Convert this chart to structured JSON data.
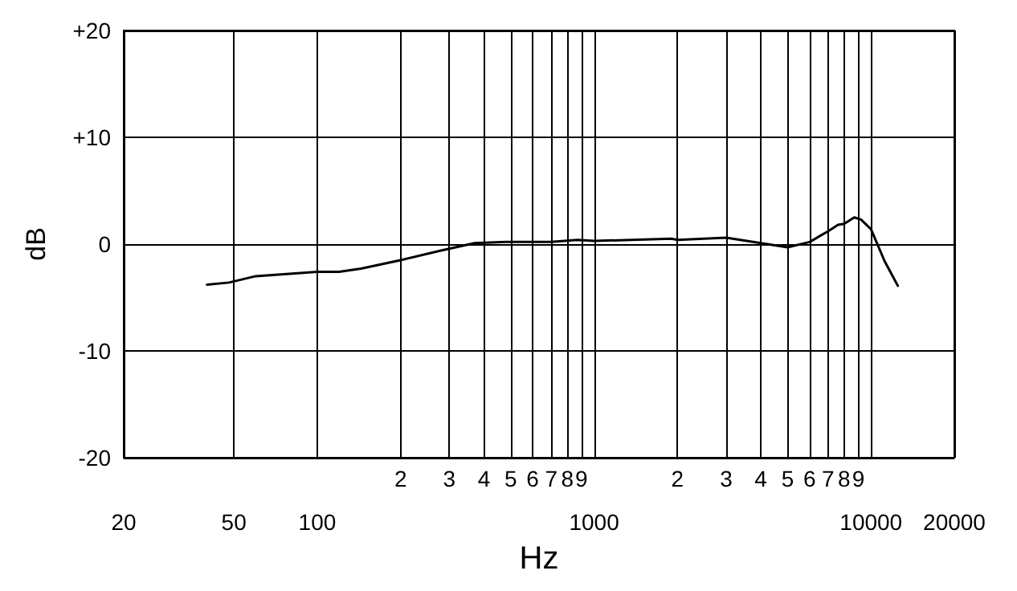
{
  "chart_data": {
    "type": "line",
    "xlabel": "Hz",
    "ylabel": "dB",
    "log": "x",
    "grid": true,
    "marker": "none",
    "line_style": "solid",
    "series": [
      {
        "color": "#000000",
        "x": [
          40,
          48,
          60,
          100,
          120,
          144,
          200,
          280,
          370,
          480,
          700,
          870,
          1000,
          1900,
          2000,
          3000,
          4000,
          5000,
          6000,
          7000,
          7600,
          8000,
          8700,
          9200,
          10000,
          11200,
          12500
        ],
        "values": [
          -3.8,
          -3.6,
          -3.0,
          -2.6,
          -2.6,
          -2.3,
          -1.5,
          -0.6,
          0.1,
          0.2,
          0.2,
          0.4,
          0.3,
          0.5,
          0.4,
          0.6,
          0.1,
          -0.3,
          0.2,
          1.2,
          1.8,
          1.9,
          2.5,
          2.3,
          1.4,
          -1.6,
          -3.9
        ]
      }
    ],
    "xlim": [
      20,
      20000
    ],
    "xticks": [
      20,
      50,
      100,
      {
        "value": 200,
        "label": null
      },
      {
        "value": 300,
        "label": null
      },
      {
        "value": 400,
        "label": null
      },
      {
        "value": 500,
        "label": null
      },
      {
        "value": 600,
        "label": null
      },
      {
        "value": 700,
        "label": null
      },
      {
        "value": 800,
        "label": null
      },
      {
        "value": 900,
        "label": null
      },
      1000,
      {
        "value": 2000,
        "label": null
      },
      {
        "value": 3000,
        "label": null
      },
      {
        "value": 4000,
        "label": null
      },
      {
        "value": 5000,
        "label": null
      },
      {
        "value": 6000,
        "label": null
      },
      {
        "value": 7000,
        "label": null
      },
      {
        "value": 8000,
        "label": null
      },
      {
        "value": 9000,
        "label": null
      },
      10000,
      20000
    ],
    "annotations": [
      "2",
      "3",
      "4",
      "5",
      "6",
      "7",
      "8",
      "9",
      "2",
      "3",
      "4",
      "5",
      "6",
      "7",
      "8",
      "9"
    ],
    "ylim": [
      -20,
      20
    ],
    "yticks": [
      {
        "value": -20,
        "label": "-20"
      },
      {
        "value": -10,
        "label": "-10"
      },
      0,
      {
        "value": 10,
        "label": "+10"
      },
      {
        "value": 20,
        "label": "+20"
      }
    ]
  }
}
